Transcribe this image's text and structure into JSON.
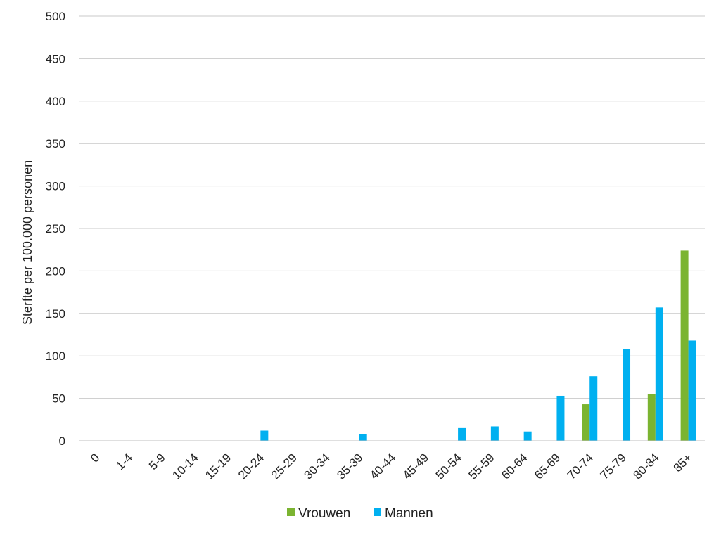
{
  "chart_data": {
    "type": "bar",
    "title": "",
    "xlabel": "",
    "ylabel": "Sterfte per 100.000 personen",
    "ylim": [
      0,
      500
    ],
    "yticks": [
      0,
      50,
      100,
      150,
      200,
      250,
      300,
      350,
      400,
      450,
      500
    ],
    "grid": true,
    "legend_position": "bottom",
    "categories": [
      "0",
      "1-4",
      "5-9",
      "10-14",
      "15-19",
      "20-24",
      "25-29",
      "30-34",
      "35-39",
      "40-44",
      "45-49",
      "50-54",
      "55-59",
      "60-64",
      "65-69",
      "70-74",
      "75-79",
      "80-84",
      "85+"
    ],
    "series": [
      {
        "name": "Vrouwen",
        "color": "#7bb431",
        "values": [
          0,
          0,
          0,
          0,
          0,
          0,
          0,
          0,
          0,
          0,
          0,
          0,
          0,
          0,
          0,
          43,
          0,
          55,
          224
        ]
      },
      {
        "name": "Mannen",
        "color": "#00b0f0",
        "values": [
          0,
          0,
          0,
          0,
          0,
          12,
          0,
          0,
          8,
          0,
          0,
          15,
          17,
          11,
          53,
          76,
          108,
          157,
          118
        ]
      }
    ]
  }
}
